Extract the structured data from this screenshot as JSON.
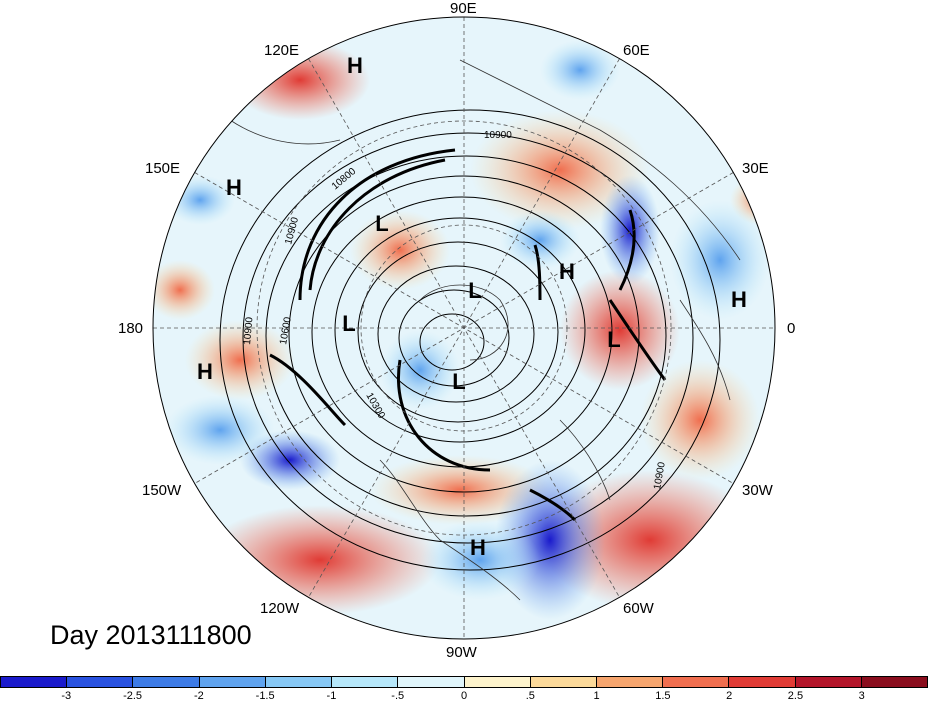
{
  "title": "Day 2013111800",
  "projection": "north polar stereographic",
  "field_shading": "anomaly",
  "contour_labels": [
    "10900",
    "10900",
    "10800",
    "10900",
    "10600",
    "10300",
    "10900"
  ],
  "longitude_labels": [
    "90E",
    "60E",
    "30E",
    "0",
    "30W",
    "60W",
    "90W",
    "120W",
    "150W",
    "180",
    "150E",
    "120E"
  ],
  "pressure_centers": [
    {
      "type": "H",
      "region": "east Siberia"
    },
    {
      "type": "H",
      "region": "west Pacific"
    },
    {
      "type": "L",
      "region": "east Siberia"
    },
    {
      "type": "L",
      "region": "Arctic"
    },
    {
      "type": "L",
      "region": "Bering Sea"
    },
    {
      "type": "L",
      "region": "Hudson Bay"
    },
    {
      "type": "H",
      "region": "central Pacific"
    },
    {
      "type": "H",
      "region": "Scandinavia"
    },
    {
      "type": "L",
      "region": "Atlantic"
    },
    {
      "type": "H",
      "region": "North Africa"
    },
    {
      "type": "H",
      "region": "Gulf of Mexico"
    }
  ],
  "colorbar": {
    "ticks": [
      "-3",
      "-2.5",
      "-2",
      "-1.5",
      "-1",
      "-.5",
      "0",
      ".5",
      "1",
      "1.5",
      "2",
      "2.5",
      "3"
    ],
    "colors": [
      "#1a1acc",
      "#2952e0",
      "#3d7be6",
      "#5fa3ee",
      "#87c8f5",
      "#b6e7fa",
      "#e0f5fb",
      "#fdf3cc",
      "#fbd99a",
      "#f6a56e",
      "#f06e4f",
      "#e03b35",
      "#b3152a",
      "#8a0d1e"
    ]
  },
  "colors": {
    "coast": "#333333",
    "contour": "#000000",
    "grid": "#666666"
  }
}
